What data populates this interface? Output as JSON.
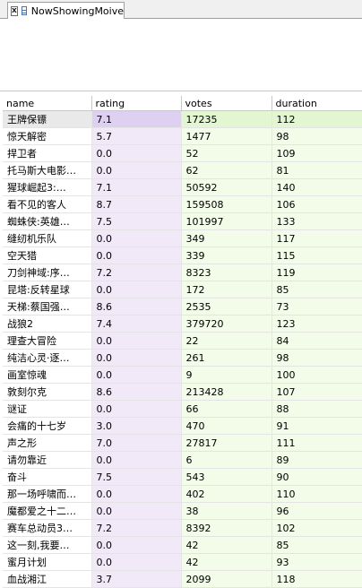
{
  "tab": {
    "title": "NowShowingMoive",
    "close_glyph": "x",
    "icon": "table-icon"
  },
  "grid": {
    "columns": [
      "name",
      "rating",
      "votes",
      "duration"
    ],
    "rows": [
      [
        "王牌保镖",
        "7.1",
        "17235",
        "112"
      ],
      [
        "惊天解密",
        "5.7",
        "1477",
        "98"
      ],
      [
        "捍卫者",
        "0.0",
        "52",
        "109"
      ],
      [
        "托马斯大电影…",
        "0.0",
        "62",
        "81"
      ],
      [
        "猩球崛起3:…",
        "7.1",
        "50592",
        "140"
      ],
      [
        "看不见的客人",
        "8.7",
        "159508",
        "106"
      ],
      [
        "蜘蛛侠:英雄…",
        "7.5",
        "101997",
        "133"
      ],
      [
        "缝纫机乐队",
        "0.0",
        "349",
        "117"
      ],
      [
        "空天猎",
        "0.0",
        "339",
        "115"
      ],
      [
        "刀剑神域:序…",
        "7.2",
        "8323",
        "119"
      ],
      [
        "昆塔:反转星球",
        "0.0",
        "172",
        "85"
      ],
      [
        "天梯:蔡国强…",
        "8.6",
        "2535",
        "73"
      ],
      [
        "战狼2",
        "7.4",
        "379720",
        "123"
      ],
      [
        "理查大冒险",
        "0.0",
        "22",
        "84"
      ],
      [
        "纯洁心灵·逐…",
        "0.0",
        "261",
        "98"
      ],
      [
        "画室惊魂",
        "0.0",
        "9",
        "100"
      ],
      [
        "敦刻尔克",
        "8.6",
        "213428",
        "107"
      ],
      [
        "谜证",
        "0.0",
        "66",
        "88"
      ],
      [
        "会痛的十七岁",
        "3.0",
        "470",
        "91"
      ],
      [
        "声之形",
        "7.0",
        "27817",
        "111"
      ],
      [
        "请勿靠近",
        "0.0",
        "6",
        "89"
      ],
      [
        "奋斗",
        "7.5",
        "543",
        "90"
      ],
      [
        "那一场呼啸而…",
        "0.0",
        "402",
        "110"
      ],
      [
        "魔都爱之十二…",
        "0.0",
        "38",
        "96"
      ],
      [
        "赛车总动员3…",
        "7.2",
        "8392",
        "102"
      ],
      [
        "这一刻,我要…",
        "0.0",
        "42",
        "85"
      ],
      [
        "蜜月计划",
        "0.0",
        "42",
        "93"
      ],
      [
        "血战湘江",
        "3.7",
        "2099",
        "118"
      ]
    ]
  }
}
